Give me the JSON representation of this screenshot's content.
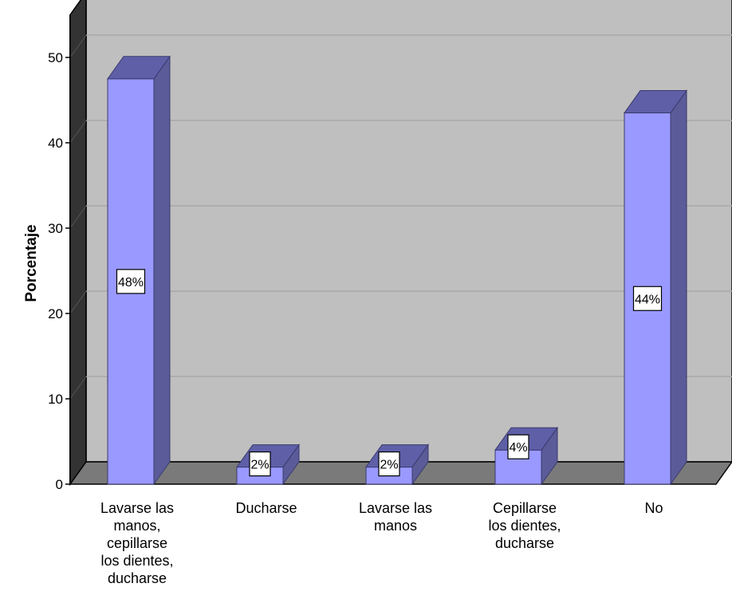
{
  "chart_data": {
    "type": "bar",
    "title": "",
    "xlabel": "",
    "ylabel": "Porcentaje",
    "ylim": [
      0,
      55
    ],
    "yticks": [
      0,
      10,
      20,
      30,
      40,
      50
    ],
    "grid": true,
    "categories": [
      "Lavarse las manos, cepillarse los dientes, ducharse",
      "Ducharse",
      "Lavarse las manos",
      "Cepillarse los dientes, ducharse",
      "No"
    ],
    "category_lines": [
      [
        "Lavarse las",
        "manos,",
        "cepillarse",
        "los dientes,",
        "ducharse"
      ],
      [
        "Ducharse"
      ],
      [
        "Lavarse las",
        "manos"
      ],
      [
        "Cepillarse",
        "los dientes,",
        "ducharse"
      ],
      [
        "No"
      ]
    ],
    "values": [
      47.5,
      2,
      2,
      4,
      43.5
    ],
    "data_labels": [
      "48%",
      "2%",
      "2%",
      "4%",
      "44%"
    ],
    "colors": {
      "bar_front": "#9999ff",
      "bar_side": "#5b5b99",
      "bar_top": "#5f5fa8",
      "back_wall": "#bfbfbf",
      "floor": "#7a7a7a",
      "grid": "#a9a9a9"
    }
  }
}
